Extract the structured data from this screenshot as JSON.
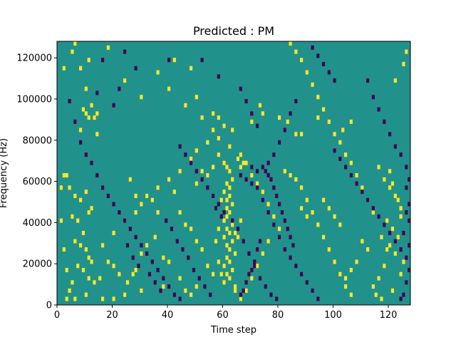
{
  "chart_data": {
    "type": "heatmap",
    "title": "Predicted : PM",
    "xlabel": "Time step",
    "ylabel": "Frequency (Hz)",
    "xlim": [
      0,
      128
    ],
    "ylim": [
      0,
      128000
    ],
    "x_ticks": [
      0,
      20,
      40,
      60,
      80,
      100,
      120
    ],
    "y_ticks": [
      0,
      20000,
      40000,
      60000,
      80000,
      100000,
      120000
    ],
    "grid": false,
    "legend": "none",
    "n_time_steps": 128,
    "n_freq_bins": 64,
    "colors": {
      "background_value": "#21918c",
      "high_value": "#fde725",
      "low_value": "#440154"
    },
    "levels": {
      "low": 0,
      "mid": 1,
      "high": 2
    },
    "high_cells": [
      [
        6,
        126000
      ],
      [
        5,
        122000
      ],
      [
        8,
        115000
      ],
      [
        11,
        118000
      ],
      [
        10,
        104000
      ],
      [
        12,
        96000
      ],
      [
        9,
        95000
      ],
      [
        10,
        92000
      ],
      [
        11,
        90000
      ],
      [
        13,
        90000
      ],
      [
        14,
        93000
      ],
      [
        8,
        84000
      ],
      [
        14,
        82000
      ],
      [
        60,
        86000
      ],
      [
        63,
        85000
      ],
      [
        70,
        88000
      ],
      [
        74,
        92000
      ],
      [
        73,
        96000
      ],
      [
        80,
        90000
      ],
      [
        83,
        88000
      ],
      [
        86,
        82000
      ],
      [
        88,
        83000
      ],
      [
        94,
        90000
      ],
      [
        103,
        85000
      ],
      [
        106,
        88000
      ],
      [
        58,
        72000
      ],
      [
        60,
        68000
      ],
      [
        61,
        66000
      ],
      [
        62,
        64000
      ],
      [
        63,
        60000
      ],
      [
        61,
        58000
      ],
      [
        62,
        56000
      ],
      [
        60,
        54000
      ],
      [
        62,
        52000
      ],
      [
        61,
        50000
      ],
      [
        63,
        48000
      ],
      [
        61,
        46000
      ],
      [
        62,
        44000
      ],
      [
        61,
        42000
      ],
      [
        60,
        40000
      ],
      [
        63,
        38000
      ],
      [
        61,
        36000
      ],
      [
        62,
        34000
      ],
      [
        60,
        32000
      ],
      [
        63,
        30000
      ],
      [
        61,
        28000
      ],
      [
        62,
        26000
      ],
      [
        64,
        24000
      ],
      [
        61,
        22000
      ],
      [
        62,
        20000
      ],
      [
        60,
        18000
      ],
      [
        63,
        16000
      ],
      [
        61,
        14000
      ],
      [
        62,
        12000
      ],
      [
        60,
        10000
      ],
      [
        64,
        8000
      ],
      [
        59,
        14000
      ],
      [
        58,
        20000
      ],
      [
        57,
        30000
      ],
      [
        58,
        36000
      ],
      [
        59,
        50000
      ],
      [
        65,
        70000
      ],
      [
        66,
        66000
      ],
      [
        67,
        68000
      ],
      [
        64,
        34000
      ],
      [
        65,
        32000
      ],
      [
        66,
        40000
      ],
      [
        2,
        62000
      ],
      [
        3,
        62000
      ],
      [
        4,
        57000
      ],
      [
        6,
        52000
      ],
      [
        8,
        50000
      ],
      [
        10,
        54000
      ],
      [
        12,
        46000
      ],
      [
        5,
        42000
      ],
      [
        7,
        40000
      ],
      [
        11,
        44000
      ],
      [
        9,
        35000
      ],
      [
        6,
        31000
      ],
      [
        8,
        28000
      ],
      [
        10,
        26000
      ],
      [
        11,
        22000
      ],
      [
        12,
        20000
      ],
      [
        7,
        18000
      ],
      [
        9,
        16000
      ],
      [
        11,
        12000
      ],
      [
        13,
        10000
      ],
      [
        5,
        10000
      ],
      [
        4,
        6000
      ],
      [
        3,
        3000
      ],
      [
        6,
        2000
      ],
      [
        10,
        5000
      ],
      [
        16,
        3000
      ],
      [
        18,
        20000
      ],
      [
        20,
        18000
      ],
      [
        22,
        14000
      ],
      [
        25,
        10000
      ],
      [
        27,
        14000
      ],
      [
        28,
        16000
      ],
      [
        30,
        24000
      ],
      [
        32,
        28000
      ],
      [
        35,
        32000
      ],
      [
        38,
        22000
      ],
      [
        40,
        20000
      ],
      [
        44,
        44000
      ],
      [
        46,
        38000
      ],
      [
        48,
        36000
      ],
      [
        50,
        30000
      ],
      [
        52,
        26000
      ],
      [
        54,
        18000
      ],
      [
        56,
        14000
      ],
      [
        46,
        6000
      ],
      [
        48,
        4000
      ],
      [
        50,
        8000
      ],
      [
        44,
        12000
      ],
      [
        38,
        8000
      ],
      [
        30,
        6000
      ],
      [
        24,
        4000
      ],
      [
        20,
        2000
      ],
      [
        15,
        12000
      ],
      [
        16,
        28000
      ],
      [
        20,
        34000
      ],
      [
        24,
        40000
      ],
      [
        28,
        44000
      ],
      [
        30,
        48000
      ],
      [
        32,
        52000
      ],
      [
        36,
        56000
      ],
      [
        40,
        60000
      ],
      [
        44,
        64000
      ],
      [
        48,
        70000
      ],
      [
        50,
        74000
      ],
      [
        54,
        78000
      ],
      [
        56,
        84000
      ],
      [
        58,
        90000
      ],
      [
        82,
        64000
      ],
      [
        84,
        62000
      ],
      [
        86,
        60000
      ],
      [
        88,
        56000
      ],
      [
        90,
        50000
      ],
      [
        92,
        44000
      ],
      [
        94,
        38000
      ],
      [
        96,
        32000
      ],
      [
        98,
        26000
      ],
      [
        100,
        20000
      ],
      [
        102,
        14000
      ],
      [
        104,
        8000
      ],
      [
        106,
        4000
      ],
      [
        116,
        66000
      ],
      [
        118,
        60000
      ],
      [
        120,
        56000
      ],
      [
        122,
        52000
      ],
      [
        124,
        46000
      ],
      [
        119,
        40000
      ],
      [
        121,
        36000
      ],
      [
        123,
        32000
      ],
      [
        120,
        28000
      ],
      [
        122,
        24000
      ],
      [
        118,
        18000
      ],
      [
        116,
        12000
      ],
      [
        114,
        8000
      ],
      [
        115,
        4000
      ],
      [
        117,
        2000
      ],
      [
        121,
        6000
      ],
      [
        124,
        14000
      ],
      [
        125,
        20000
      ],
      [
        119,
        26000
      ],
      [
        117,
        32000
      ],
      [
        114,
        44000
      ],
      [
        112,
        50000
      ],
      [
        110,
        56000
      ],
      [
        108,
        62000
      ],
      [
        106,
        68000
      ],
      [
        104,
        72000
      ],
      [
        102,
        78000
      ],
      [
        100,
        82000
      ],
      [
        98,
        88000
      ],
      [
        96,
        94000
      ],
      [
        94,
        100000
      ],
      [
        92,
        106000
      ],
      [
        90,
        112000
      ],
      [
        88,
        118000
      ],
      [
        86,
        122000
      ],
      [
        84,
        126000
      ],
      [
        122,
        108000
      ],
      [
        125,
        116000
      ],
      [
        126,
        122000
      ],
      [
        120,
        64000
      ],
      [
        121,
        58000
      ],
      [
        123,
        50000
      ],
      [
        124,
        42000
      ],
      [
        2,
        114000
      ],
      [
        18,
        124000
      ],
      [
        24,
        108000
      ],
      [
        30,
        100000
      ],
      [
        36,
        112000
      ],
      [
        40,
        104000
      ],
      [
        46,
        96000
      ],
      [
        52,
        90000
      ],
      [
        42,
        118000
      ],
      [
        48,
        114000
      ],
      [
        50,
        100000
      ],
      [
        56,
        92000
      ],
      [
        58,
        80000
      ],
      [
        62,
        76000
      ],
      [
        66,
        72000
      ],
      [
        68,
        68000
      ],
      [
        70,
        62000
      ],
      [
        72,
        58000
      ],
      [
        74,
        54000
      ],
      [
        76,
        48000
      ],
      [
        78,
        42000
      ],
      [
        80,
        36000
      ],
      [
        76,
        30000
      ],
      [
        74,
        24000
      ],
      [
        72,
        18000
      ],
      [
        70,
        12000
      ],
      [
        68,
        6000
      ],
      [
        66,
        2000
      ],
      [
        64,
        6000
      ],
      [
        1,
        56000
      ],
      [
        1,
        40000
      ],
      [
        2,
        26000
      ],
      [
        3,
        16000
      ],
      [
        26,
        60000
      ],
      [
        28,
        52000
      ],
      [
        34,
        50000
      ],
      [
        36,
        44000
      ],
      [
        42,
        54000
      ],
      [
        50,
        58000
      ],
      [
        52,
        64000
      ],
      [
        54,
        62000
      ],
      [
        56,
        66000
      ],
      [
        88,
        46000
      ],
      [
        90,
        42000
      ],
      [
        96,
        50000
      ],
      [
        98,
        46000
      ],
      [
        100,
        42000
      ],
      [
        102,
        38000
      ],
      [
        110,
        30000
      ],
      [
        112,
        26000
      ],
      [
        108,
        20000
      ],
      [
        106,
        16000
      ],
      [
        104,
        12000
      ]
    ],
    "low_cells": [
      [
        16,
        118000
      ],
      [
        24,
        122000
      ],
      [
        40,
        118000
      ],
      [
        52,
        118000
      ],
      [
        58,
        110000
      ],
      [
        66,
        104000
      ],
      [
        68,
        98000
      ],
      [
        70,
        92000
      ],
      [
        72,
        86000
      ],
      [
        28,
        114000
      ],
      [
        22,
        104000
      ],
      [
        20,
        96000
      ],
      [
        14,
        102000
      ],
      [
        112,
        108000
      ],
      [
        114,
        100000
      ],
      [
        116,
        94000
      ],
      [
        118,
        88000
      ],
      [
        120,
        82000
      ],
      [
        122,
        76000
      ],
      [
        124,
        72000
      ],
      [
        126,
        66000
      ],
      [
        127,
        60000
      ],
      [
        126,
        56000
      ],
      [
        127,
        48000
      ],
      [
        126,
        44000
      ],
      [
        127,
        40000
      ],
      [
        125,
        34000
      ],
      [
        127,
        28000
      ],
      [
        126,
        22000
      ],
      [
        127,
        16000
      ],
      [
        126,
        10000
      ],
      [
        125,
        4000
      ],
      [
        124,
        2000
      ],
      [
        66,
        62000
      ],
      [
        68,
        60000
      ],
      [
        70,
        58000
      ],
      [
        72,
        56000
      ],
      [
        74,
        50000
      ],
      [
        76,
        44000
      ],
      [
        78,
        38000
      ],
      [
        80,
        32000
      ],
      [
        82,
        26000
      ],
      [
        84,
        22000
      ],
      [
        86,
        18000
      ],
      [
        88,
        14000
      ],
      [
        90,
        10000
      ],
      [
        92,
        6000
      ],
      [
        94,
        2000
      ],
      [
        74,
        66000
      ],
      [
        75,
        64000
      ],
      [
        76,
        62000
      ],
      [
        77,
        60000
      ],
      [
        78,
        56000
      ],
      [
        79,
        52000
      ],
      [
        80,
        48000
      ],
      [
        81,
        44000
      ],
      [
        82,
        40000
      ],
      [
        83,
        36000
      ],
      [
        84,
        32000
      ],
      [
        85,
        28000
      ],
      [
        73,
        30000
      ],
      [
        72,
        26000
      ],
      [
        71,
        20000
      ],
      [
        70,
        16000
      ],
      [
        69,
        14000
      ],
      [
        68,
        10000
      ],
      [
        67,
        6000
      ],
      [
        66,
        4000
      ],
      [
        4,
        98000
      ],
      [
        6,
        88000
      ],
      [
        8,
        78000
      ],
      [
        10,
        72000
      ],
      [
        12,
        68000
      ],
      [
        14,
        62000
      ],
      [
        16,
        56000
      ],
      [
        18,
        52000
      ],
      [
        20,
        48000
      ],
      [
        22,
        44000
      ],
      [
        24,
        40000
      ],
      [
        26,
        36000
      ],
      [
        28,
        32000
      ],
      [
        30,
        28000
      ],
      [
        32,
        24000
      ],
      [
        34,
        20000
      ],
      [
        36,
        16000
      ],
      [
        38,
        12000
      ],
      [
        40,
        8000
      ],
      [
        42,
        4000
      ],
      [
        44,
        2000
      ],
      [
        44,
        76000
      ],
      [
        46,
        72000
      ],
      [
        48,
        68000
      ],
      [
        50,
        64000
      ],
      [
        52,
        60000
      ],
      [
        54,
        56000
      ],
      [
        56,
        52000
      ],
      [
        58,
        48000
      ],
      [
        60,
        44000
      ],
      [
        100,
        74000
      ],
      [
        102,
        70000
      ],
      [
        104,
        66000
      ],
      [
        106,
        62000
      ],
      [
        108,
        58000
      ],
      [
        110,
        54000
      ],
      [
        112,
        50000
      ],
      [
        114,
        46000
      ],
      [
        116,
        42000
      ],
      [
        118,
        38000
      ],
      [
        120,
        34000
      ],
      [
        122,
        30000
      ],
      [
        124,
        26000
      ],
      [
        92,
        124000
      ],
      [
        94,
        120000
      ],
      [
        96,
        116000
      ],
      [
        98,
        112000
      ],
      [
        100,
        108000
      ],
      [
        86,
        98000
      ],
      [
        84,
        92000
      ],
      [
        82,
        84000
      ],
      [
        80,
        78000
      ],
      [
        78,
        72000
      ],
      [
        76,
        68000
      ],
      [
        70,
        66000
      ],
      [
        72,
        64000
      ],
      [
        25,
        28000
      ],
      [
        27,
        22000
      ],
      [
        29,
        18000
      ],
      [
        33,
        14000
      ],
      [
        35,
        10000
      ],
      [
        37,
        6000
      ],
      [
        39,
        40000
      ],
      [
        41,
        36000
      ],
      [
        43,
        30000
      ],
      [
        45,
        26000
      ],
      [
        47,
        22000
      ],
      [
        49,
        16000
      ],
      [
        51,
        12000
      ],
      [
        53,
        8000
      ],
      [
        55,
        4000
      ],
      [
        57,
        46000
      ],
      [
        59,
        42000
      ],
      [
        63,
        40000
      ],
      [
        65,
        36000
      ],
      [
        67,
        30000
      ],
      [
        69,
        24000
      ],
      [
        71,
        18000
      ],
      [
        73,
        12000
      ],
      [
        75,
        8000
      ],
      [
        77,
        4000
      ],
      [
        79,
        2000
      ]
    ]
  }
}
